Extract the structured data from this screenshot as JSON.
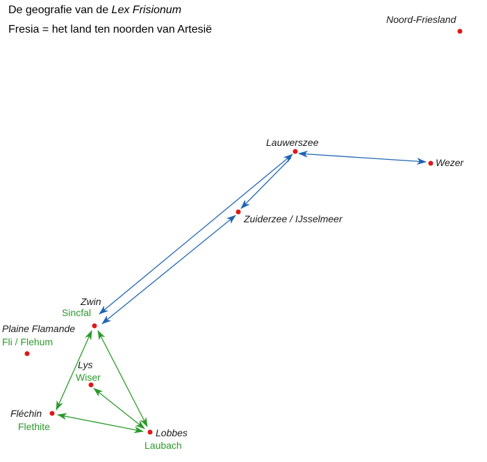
{
  "title": {
    "line1_prefix": "De geografie van de ",
    "line1_italic": "Lex Frisionum",
    "line2": "Fresia = het land ten noorden van Artesië"
  },
  "colors": {
    "point": "#e01818",
    "place_label": "#1a1a1a",
    "alt_label": "#2a9a2a",
    "blue_arrow": "#1f64b4",
    "green_arrow": "#2a9a2a"
  },
  "places": {
    "noord_friesland": "Noord-Friesland",
    "lauwerszee": "Lauwerszee",
    "wezer": "Wezer",
    "zuiderzee": "Zuiderzee / IJsselmeer",
    "zwin": "Zwin",
    "plaine_flamande": "Plaine Flamande",
    "lys": "Lys",
    "flechin": "Fléchin",
    "lobbes": "Lobbes"
  },
  "alt_names": {
    "zwin": "Sincfal",
    "plaine_flamande": "Fli / Flehum",
    "lys": "Wiser",
    "flechin": "Flethite",
    "lobbes": "Laubach"
  }
}
